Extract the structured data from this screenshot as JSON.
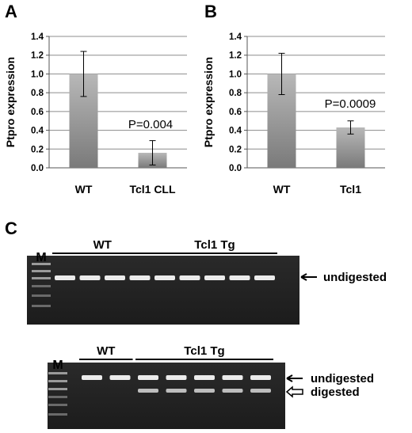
{
  "panels": {
    "A": "A",
    "B": "B",
    "C": "C"
  },
  "chart_data": [
    {
      "type": "bar",
      "panel": "A",
      "categories": [
        "WT",
        "Tcl1 CLL"
      ],
      "values": [
        1.0,
        0.16
      ],
      "errors": [
        0.24,
        0.13
      ],
      "ylabel": "Ptpro expression",
      "ylim": [
        0,
        1.4
      ],
      "yticks": [
        "0.0",
        "0.2",
        "0.4",
        "0.6",
        "0.8",
        "1.0",
        "1.2",
        "1.4"
      ],
      "annotation": "P=0.004",
      "grid": true
    },
    {
      "type": "bar",
      "panel": "B",
      "categories": [
        "WT",
        "Tcl1"
      ],
      "values": [
        1.0,
        0.43
      ],
      "errors": [
        0.22,
        0.07
      ],
      "ylabel": "Ptpro expression",
      "ylim": [
        0,
        1.4
      ],
      "yticks": [
        "0.0",
        "0.2",
        "0.4",
        "0.6",
        "0.8",
        "1.0",
        "1.2",
        "1.4"
      ],
      "annotation": "P=0.0009",
      "grid": true
    }
  ],
  "gels": [
    {
      "marker": "M",
      "groups": [
        {
          "label": "WT",
          "lanes": 4
        },
        {
          "label": "Tcl1 Tg",
          "lanes": 5
        }
      ],
      "band_labels": [
        "undigested"
      ]
    },
    {
      "marker": "M",
      "groups": [
        {
          "label": "WT",
          "lanes": 2
        },
        {
          "label": "Tcl1 Tg",
          "lanes": 5
        }
      ],
      "band_labels": [
        "undigested",
        "digested"
      ]
    }
  ]
}
